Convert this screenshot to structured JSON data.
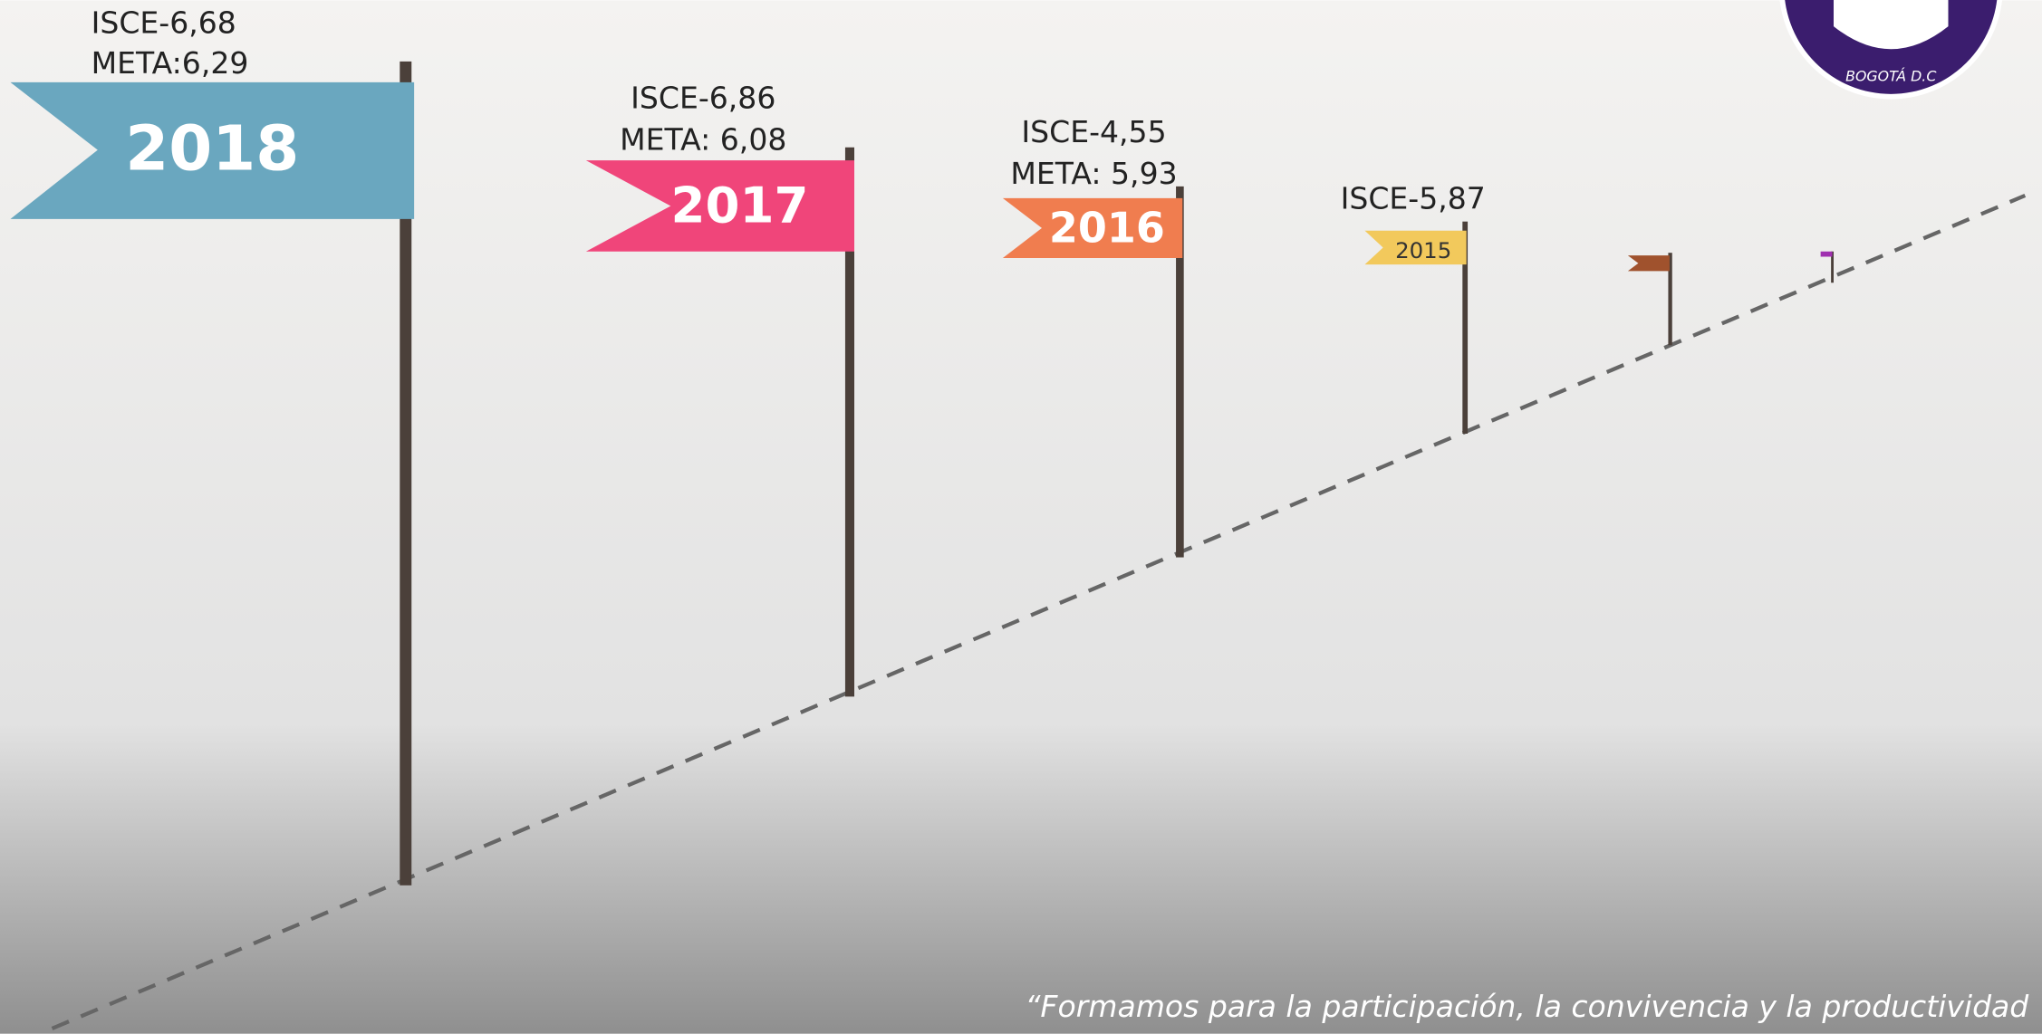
{
  "flags": [
    {
      "year": "2018",
      "isce": "ISCE-6,68",
      "meta": "META:6,29"
    },
    {
      "year": "2017",
      "isce": "ISCE-6,86",
      "meta": "META: 6,08"
    },
    {
      "year": "2016",
      "isce": "ISCE-4,55",
      "meta": "META: 5,93"
    },
    {
      "year": "2015",
      "isce": "ISCE-5,87"
    }
  ],
  "quote": "“Formamos para la participación, la convivencia y la productividad",
  "logo": {
    "text": "BOGOTÁ D.C"
  }
}
